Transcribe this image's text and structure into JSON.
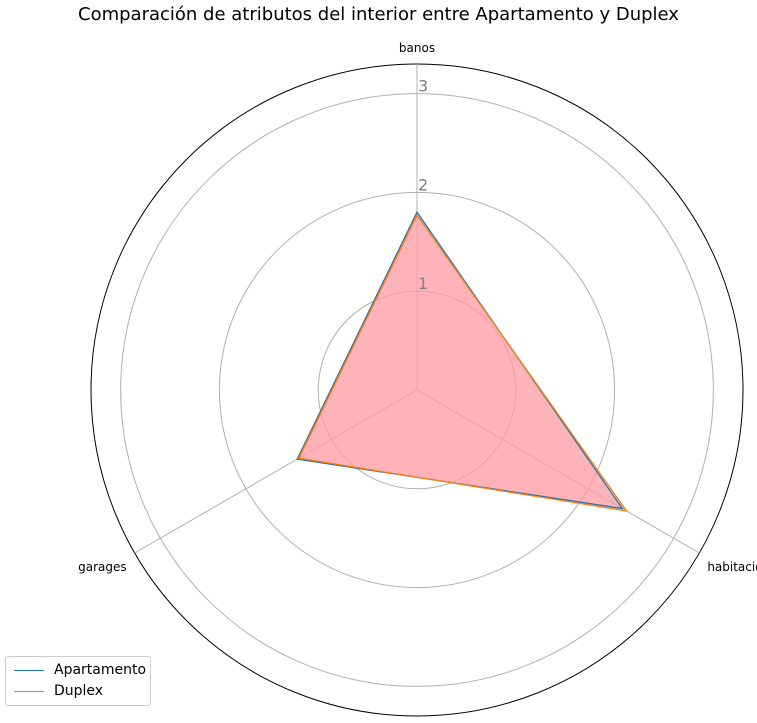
{
  "chart_data": {
    "type": "radar",
    "title": "Comparación de atributos del interior entre Apartamento y Duplex",
    "axes": [
      "banos",
      "habitaciones",
      "garages"
    ],
    "rlim": [
      0,
      3.3
    ],
    "rticks": [
      "1",
      "2",
      "3"
    ],
    "grid": true,
    "legend_position": "bottom-left",
    "fill_color": "#ff9aa2",
    "series": [
      {
        "name": "Apartamento",
        "color": "#1f77b4",
        "values": [
          1.8,
          2.4,
          1.4
        ]
      },
      {
        "name": "Duplex",
        "color": "#ff7f0e",
        "values": [
          1.77,
          2.45,
          1.38
        ]
      }
    ]
  }
}
